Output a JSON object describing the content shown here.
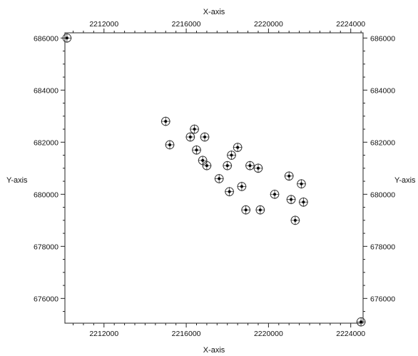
{
  "chart_data": {
    "type": "scatter",
    "title": "",
    "xlabel": "X-axis",
    "ylabel": "Y-axis",
    "xlim": [
      2210100,
      2224600
    ],
    "ylim": [
      675050,
      686200
    ],
    "xticks": [
      2212000,
      2216000,
      2220000,
      2224000
    ],
    "yticks": [
      676000,
      678000,
      680000,
      682000,
      684000,
      686000
    ],
    "xtick_labels": [
      "2212000",
      "2216000",
      "2220000",
      "2224000"
    ],
    "ytick_labels": [
      "676000",
      "678000",
      "680000",
      "682000",
      "684000",
      "686000"
    ],
    "grid": false,
    "marker": "circled-plus",
    "series": [
      {
        "points": [
          [
            2210200,
            686000
          ],
          [
            2215000,
            682800
          ],
          [
            2215200,
            681900
          ],
          [
            2216200,
            682200
          ],
          [
            2216400,
            682500
          ],
          [
            2216500,
            681700
          ],
          [
            2216800,
            681300
          ],
          [
            2216900,
            682200
          ],
          [
            2217000,
            681100
          ],
          [
            2217600,
            680600
          ],
          [
            2218000,
            681100
          ],
          [
            2218100,
            680100
          ],
          [
            2218200,
            681500
          ],
          [
            2218500,
            681800
          ],
          [
            2218700,
            680300
          ],
          [
            2218900,
            679400
          ],
          [
            2219100,
            681100
          ],
          [
            2219500,
            681000
          ],
          [
            2219600,
            679400
          ],
          [
            2220300,
            680000
          ],
          [
            2221000,
            680700
          ],
          [
            2221100,
            679800
          ],
          [
            2221300,
            679000
          ],
          [
            2221600,
            680400
          ],
          [
            2221700,
            679700
          ],
          [
            2224500,
            675100
          ]
        ]
      }
    ]
  }
}
